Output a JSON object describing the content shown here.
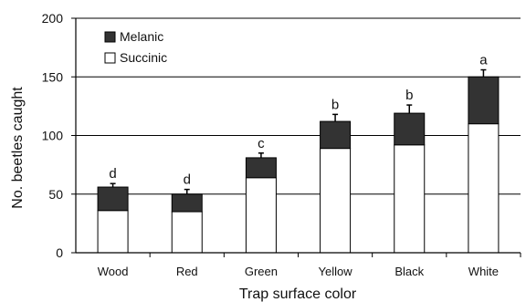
{
  "chart_data": {
    "type": "bar",
    "stacked": true,
    "title": "",
    "xlabel": "Trap surface color",
    "ylabel": "No. beetles caught",
    "ylim": [
      0,
      200
    ],
    "yticks": [
      "0",
      "50",
      "100",
      "150",
      "200"
    ],
    "grid": true,
    "legend_position": "top-left",
    "categories": [
      "Wood",
      "Red",
      "Green",
      "Yellow",
      "Black",
      "White"
    ],
    "series": [
      {
        "name": "Succinic",
        "color": "#ffffff",
        "values": [
          36,
          35,
          64,
          89,
          92,
          110
        ]
      },
      {
        "name": "Melanic",
        "color": "#333333",
        "values": [
          20,
          15,
          17,
          23,
          27,
          40
        ]
      }
    ],
    "error_bars": [
      3,
      4,
      4,
      6,
      7,
      6
    ],
    "letters": [
      "d",
      "d",
      "c",
      "b",
      "b",
      "a"
    ]
  }
}
